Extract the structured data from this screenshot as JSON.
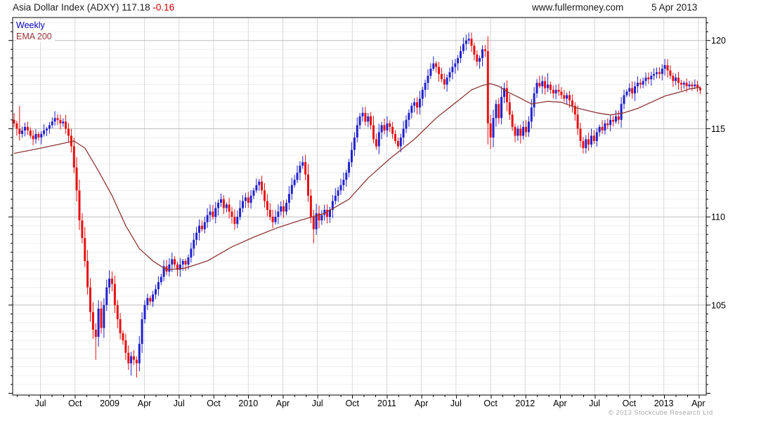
{
  "header": {
    "title": "Asia Dollar Index (ADXY) 117.18",
    "change": "-0.16",
    "website": "www.fullermoney.com",
    "date": "5 Apr 2013"
  },
  "legend": {
    "series": "Weekly",
    "overlay": "EMA 200"
  },
  "footer": {
    "copyright": "© 2013 Stockcube Research Ltd"
  },
  "colors": {
    "up": "#2222cc",
    "down": "#e81111",
    "ema": "#8e3535",
    "weekly_label": "#0000bb",
    "ema_label": "#993333",
    "change": "#cc0000",
    "grid_minor": "#efefef",
    "grid_major": "#bdbdbd",
    "grid_vertical": "#d8d8d8",
    "axis": "#000000",
    "copyright": "#a9a9a9"
  },
  "chart_data": {
    "type": "candlestick",
    "title": "Asia Dollar Index (ADXY)",
    "frequency": "Weekly",
    "overlay": "EMA 200",
    "last_price": 117.18,
    "change": -0.16,
    "as_of": "5 Apr 2013",
    "y_axis_side": "right",
    "y_range": [
      99.9,
      121.3
    ],
    "y_ticks_major": [
      105,
      110,
      115,
      120
    ],
    "y_minor_step": 0.5,
    "x_tick_labels": [
      "Jul",
      "Oct",
      "2009",
      "Apr",
      "Jul",
      "Oct",
      "2010",
      "Apr",
      "Jul",
      "Oct",
      "2011",
      "Apr",
      "Jul",
      "Oct",
      "2012",
      "Apr",
      "Jul",
      "Oct",
      "2013",
      "Apr"
    ],
    "x_ticks": [
      {
        "label": "Jul",
        "week": 9.7
      },
      {
        "label": "Oct",
        "week": 22.4
      },
      {
        "label": "2009",
        "week": 35.1
      },
      {
        "label": "Apr",
        "week": 47.9
      },
      {
        "label": "Jul",
        "week": 60.6
      },
      {
        "label": "Oct",
        "week": 73.3
      },
      {
        "label": "2010",
        "week": 86.0
      },
      {
        "label": "Apr",
        "week": 98.7
      },
      {
        "label": "Jul",
        "week": 111.4
      },
      {
        "label": "Oct",
        "week": 124.2
      },
      {
        "label": "2011",
        "week": 136.9
      },
      {
        "label": "Apr",
        "week": 149.6
      },
      {
        "label": "Jul",
        "week": 162.3
      },
      {
        "label": "Oct",
        "week": 175.0
      },
      {
        "label": "2012",
        "week": 187.7
      },
      {
        "label": "Apr",
        "week": 200.5
      },
      {
        "label": "Jul",
        "week": 213.2
      },
      {
        "label": "Oct",
        "week": 225.9
      },
      {
        "label": "2013",
        "week": 238.6
      },
      {
        "label": "Apr",
        "week": 251.3
      }
    ],
    "month_ticks": {
      "start_week": 1.22,
      "step_weeks": 4.2433,
      "count": 60
    },
    "open_first": 115.5,
    "weekly_closes": [
      115.3,
      115.0,
      114.7,
      114.9,
      115.1,
      114.9,
      114.6,
      114.4,
      114.7,
      114.5,
      114.7,
      114.9,
      115.0,
      115.2,
      115.4,
      115.6,
      115.5,
      115.3,
      115.4,
      115.0,
      114.6,
      114.0,
      112.8,
      111.5,
      109.8,
      108.8,
      107.5,
      106.0,
      104.6,
      103.6,
      103.2,
      104.8,
      103.7,
      105.0,
      106.0,
      106.5,
      106.2,
      105.0,
      104.2,
      103.4,
      103.0,
      102.3,
      101.7,
      102.1,
      101.9,
      101.7,
      102.8,
      104.2,
      105.0,
      105.4,
      105.2,
      105.6,
      105.9,
      106.3,
      106.6,
      107.2,
      106.9,
      107.3,
      107.6,
      107.3,
      107.0,
      107.3,
      107.5,
      107.3,
      107.7,
      108.2,
      108.7,
      109.1,
      109.5,
      109.3,
      109.7,
      110.1,
      110.3,
      110.0,
      110.5,
      110.8,
      111.0,
      110.5,
      110.7,
      110.3,
      110.0,
      109.6,
      110.0,
      110.5,
      110.9,
      111.1,
      110.8,
      111.2,
      111.5,
      111.8,
      112.0,
      111.5,
      110.9,
      110.4,
      110.0,
      109.7,
      110.0,
      110.3,
      110.6,
      110.3,
      110.8,
      111.3,
      111.8,
      112.1,
      112.5,
      112.9,
      113.1,
      112.4,
      111.2,
      110.0,
      109.3,
      110.2,
      109.8,
      110.1,
      110.4,
      110.0,
      110.4,
      110.9,
      111.2,
      111.5,
      111.8,
      112.1,
      112.5,
      113.1,
      113.8,
      114.5,
      115.2,
      115.7,
      115.9,
      115.4,
      115.7,
      115.2,
      114.4,
      114.0,
      114.8,
      115.2,
      114.9,
      115.3,
      115.1,
      114.7,
      114.3,
      114.0,
      114.5,
      115.0,
      115.5,
      115.9,
      116.3,
      116.5,
      116.2,
      116.7,
      117.2,
      117.6,
      118.0,
      118.4,
      118.7,
      118.5,
      118.1,
      117.8,
      117.5,
      117.9,
      118.2,
      118.5,
      118.7,
      119.0,
      119.4,
      119.8,
      120.0,
      120.1,
      119.7,
      119.2,
      118.8,
      119.0,
      119.5,
      119.4,
      115.3,
      114.5,
      115.6,
      116.4,
      115.6,
      116.8,
      117.3,
      116.5,
      115.8,
      115.1,
      114.6,
      115.0,
      114.6,
      115.1,
      114.8,
      115.4,
      116.2,
      117.0,
      117.6,
      117.4,
      117.7,
      117.3,
      117.5,
      117.2,
      117.0,
      117.2,
      117.1,
      116.9,
      116.7,
      116.9,
      116.6,
      116.3,
      115.8,
      115.0,
      114.3,
      113.9,
      114.4,
      114.1,
      114.6,
      114.3,
      114.8,
      115.1,
      114.9,
      115.3,
      115.2,
      115.5,
      115.4,
      115.7,
      115.5,
      116.4,
      116.9,
      117.1,
      117.3,
      117.0,
      117.4,
      117.6,
      117.5,
      117.7,
      117.9,
      117.8,
      118.0,
      118.1,
      118.2,
      118.1,
      118.4,
      118.6,
      118.3,
      118.0,
      117.7,
      117.9,
      117.6,
      117.5,
      117.6,
      117.4,
      117.5,
      117.4,
      117.5,
      117.3,
      117.18
    ],
    "wick_overrides": {
      "2": {
        "h": 116.3
      },
      "30": {
        "l": 101.9
      },
      "43": {
        "l": 101.0
      },
      "45": {
        "l": 100.9
      },
      "106": {
        "h": 113.45
      },
      "110": {
        "l": 108.5
      },
      "133": {
        "l": 113.8
      },
      "141": {
        "l": 113.85
      },
      "167": {
        "h": 120.45
      },
      "174": {
        "l": 114.1
      },
      "175": {
        "l": 113.85
      },
      "196": {
        "h": 118.15
      },
      "209": {
        "l": 113.6
      },
      "239": {
        "h": 118.95
      }
    },
    "ema_anchors": [
      [
        0,
        113.6
      ],
      [
        10,
        113.9
      ],
      [
        19,
        114.2
      ],
      [
        22,
        114.3
      ],
      [
        26,
        113.9
      ],
      [
        31,
        112.6
      ],
      [
        36,
        111.2
      ],
      [
        41,
        109.5
      ],
      [
        46,
        108.2
      ],
      [
        51,
        107.5
      ],
      [
        56,
        107.0
      ],
      [
        63,
        107.1
      ],
      [
        71,
        107.5
      ],
      [
        80,
        108.3
      ],
      [
        88,
        108.85
      ],
      [
        97,
        109.4
      ],
      [
        105,
        109.8
      ],
      [
        114,
        110.2
      ],
      [
        123,
        111.0
      ],
      [
        130,
        112.2
      ],
      [
        138,
        113.3
      ],
      [
        147,
        114.4
      ],
      [
        155,
        115.6
      ],
      [
        164,
        116.7
      ],
      [
        168,
        117.2
      ],
      [
        172,
        117.45
      ],
      [
        175,
        117.55
      ],
      [
        178,
        117.4
      ],
      [
        181,
        117.1
      ],
      [
        185,
        116.8
      ],
      [
        190,
        116.4
      ],
      [
        196,
        116.55
      ],
      [
        201,
        116.5
      ],
      [
        206,
        116.2
      ],
      [
        214,
        115.9
      ],
      [
        219,
        115.78
      ],
      [
        224,
        115.9
      ],
      [
        229,
        116.15
      ],
      [
        234,
        116.5
      ],
      [
        239,
        116.85
      ],
      [
        245,
        117.1
      ],
      [
        248,
        117.25
      ],
      [
        252,
        117.35
      ]
    ],
    "grid": {
      "horizontal_minor": true,
      "horizontal_major": true,
      "vertical_quarters": true
    },
    "legend_position": "top-left"
  }
}
